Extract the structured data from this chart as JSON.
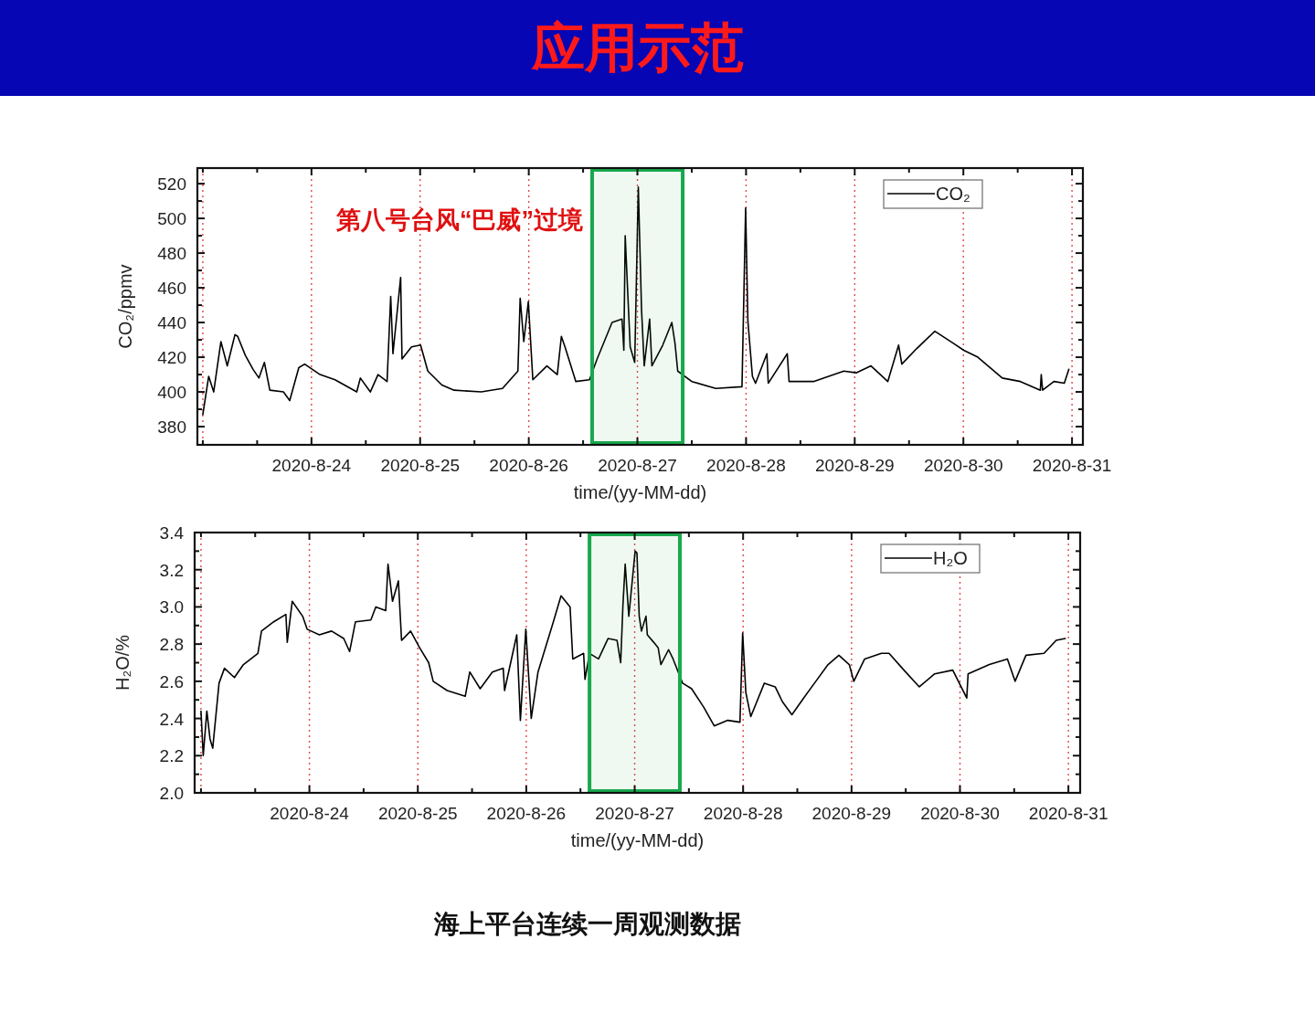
{
  "chart_data": [
    {
      "type": "line",
      "title": "应用示范",
      "xlabel": "time/(yy-MM-dd)",
      "ylabel": "CO₂/ppmv",
      "legend": "top right",
      "xlim": [
        "2020-08-22T22:48",
        "2020-08-31T02:24"
      ],
      "ylim": [
        369.5,
        529
      ],
      "xticks": [
        {
          "value": "2020-08-23",
          "label": null
        },
        {
          "value": "2020-08-23T12:00",
          "label": null
        },
        {
          "value": "2020-08-24",
          "label": "2020-8-24"
        },
        {
          "value": "2020-08-24T12:00",
          "label": null
        },
        {
          "value": "2020-08-25",
          "label": "2020-8-25"
        },
        {
          "value": "2020-08-25T12:00",
          "label": null
        },
        {
          "value": "2020-08-26",
          "label": "2020-8-26"
        },
        {
          "value": "2020-08-26T12:00",
          "label": null
        },
        {
          "value": "2020-08-27",
          "label": "2020-8-27"
        },
        {
          "value": "2020-08-27T12:00",
          "label": null
        },
        {
          "value": "2020-08-28",
          "label": "2020-8-28"
        },
        {
          "value": "2020-08-28T12:00",
          "label": null
        },
        {
          "value": "2020-08-29",
          "label": "2020-8-29"
        },
        {
          "value": "2020-08-29T12:00",
          "label": null
        },
        {
          "value": "2020-08-30",
          "label": "2020-8-30"
        },
        {
          "value": "2020-08-30T12:00",
          "label": null
        },
        {
          "value": "2020-08-31",
          "label": "2020-8-31"
        }
      ],
      "yticks": [
        380,
        {
          "value": 390,
          "label": null
        },
        400,
        {
          "value": 410,
          "label": null
        },
        420,
        {
          "value": 430,
          "label": null
        },
        440,
        {
          "value": 450,
          "label": null
        },
        460,
        {
          "value": 470,
          "label": null
        },
        480,
        {
          "value": 490,
          "label": null
        },
        500,
        {
          "value": 510,
          "label": null
        },
        520
      ],
      "ref_lines": [
        {
          "axis": "x",
          "value": "2020-08-23",
          "color": "#e04848",
          "line_style": "dotted"
        },
        {
          "axis": "x",
          "value": "2020-08-24",
          "color": "#e04848",
          "line_style": "dotted"
        },
        {
          "axis": "x",
          "value": "2020-08-25",
          "color": "#e04848",
          "line_style": "dotted"
        },
        {
          "axis": "x",
          "value": "2020-08-26",
          "color": "#e04848",
          "line_style": "dotted"
        },
        {
          "axis": "x",
          "value": "2020-08-27",
          "color": "#e04848",
          "line_style": "dotted"
        },
        {
          "axis": "x",
          "value": "2020-08-28",
          "color": "#e04848",
          "line_style": "dotted"
        },
        {
          "axis": "x",
          "value": "2020-08-29",
          "color": "#e04848",
          "line_style": "dotted"
        },
        {
          "axis": "x",
          "value": "2020-08-30",
          "color": "#e04848",
          "line_style": "dotted"
        },
        {
          "axis": "x",
          "value": "2020-08-31",
          "color": "#e04848",
          "line_style": "dotted"
        }
      ],
      "bands": [
        {
          "axis": "x",
          "from": "2020-08-26T14:00",
          "to": "2020-08-27T10:00",
          "label": "第八号台风“巴威”过境",
          "color": "#18a84c"
        }
      ],
      "series": [
        {
          "name": "CO₂",
          "color": "#000000",
          "x": [
            "2020-08-23T00:00",
            "2020-08-23T01:18",
            "2020-08-23T02:24",
            "2020-08-23T04:00",
            "2020-08-23T05:24",
            "2020-08-23T07:06",
            "2020-08-23T07:42",
            "2020-08-23T09:24",
            "2020-08-23T11:06",
            "2020-08-23T12:24",
            "2020-08-23T13:36",
            "2020-08-23T14:48",
            "2020-08-23T17:48",
            "2020-08-23T19:12",
            "2020-08-23T21:12",
            "2020-08-23T22:30",
            "2020-08-24T01:54",
            "2020-08-24T05:12",
            "2020-08-24T10:00",
            "2020-08-24T10:48",
            "2020-08-24T13:00",
            "2020-08-24T14:42",
            "2020-08-24T16:42",
            "2020-08-24T17:30",
            "2020-08-24T18:00",
            "2020-08-24T19:42",
            "2020-08-24T20:00",
            "2020-08-24T22:06",
            "2020-08-25T00:06",
            "2020-08-25T01:42",
            "2020-08-25T04:48",
            "2020-08-25T07:30",
            "2020-08-25T13:30",
            "2020-08-25T18:12",
            "2020-08-25T21:36",
            "2020-08-25T22:06",
            "2020-08-25T22:54",
            "2020-08-25T23:54",
            "2020-08-26T00:54",
            "2020-08-26T04:00",
            "2020-08-26T06:18",
            "2020-08-26T07:12",
            "2020-08-26T08:00",
            "2020-08-26T10:24",
            "2020-08-26T13:24",
            "2020-08-26T15:06",
            "2020-08-26T18:24",
            "2020-08-26T20:36",
            "2020-08-26T21:00",
            "2020-08-26T21:18",
            "2020-08-26T22:24",
            "2020-08-26T23:24",
            "2020-08-27T00:12",
            "2020-08-27T00:54",
            "2020-08-27T01:30",
            "2020-08-27T02:42",
            "2020-08-27T03:12",
            "2020-08-27T05:36",
            "2020-08-27T07:36",
            "2020-08-27T08:18",
            "2020-08-27T08:54",
            "2020-08-27T12:00",
            "2020-08-27T17:18",
            "2020-08-27T23:06",
            "2020-08-27T23:54",
            "2020-08-28T00:24",
            "2020-08-28T01:24",
            "2020-08-28T02:06",
            "2020-08-28T04:36",
            "2020-08-28T04:54",
            "2020-08-28T09:06",
            "2020-08-28T09:30",
            "2020-08-28T14:54",
            "2020-08-28T21:36",
            "2020-08-29T00:18",
            "2020-08-29T03:36",
            "2020-08-29T07:18",
            "2020-08-29T09:42",
            "2020-08-29T10:24",
            "2020-08-29T13:42",
            "2020-08-29T17:42",
            "2020-08-29T21:48",
            "2020-08-30T00:06",
            "2020-08-30T03:12",
            "2020-08-30T08:36",
            "2020-08-30T12:36",
            "2020-08-30T17:00",
            "2020-08-30T17:12",
            "2020-08-30T17:30",
            "2020-08-30T20:00",
            "2020-08-30T22:18",
            "2020-08-30T23:18"
          ],
          "values": [
            387,
            409,
            400,
            429,
            415,
            433,
            432,
            421,
            413,
            408,
            417,
            401,
            400,
            395,
            414,
            416,
            410,
            407,
            400,
            408,
            400,
            410,
            406,
            455,
            422,
            466,
            419,
            426,
            427,
            412,
            404,
            401,
            400,
            402,
            412,
            454,
            429,
            452,
            407,
            415,
            410,
            432,
            426,
            406,
            407,
            419,
            440,
            442,
            424,
            490,
            426,
            417,
            518,
            448,
            415,
            442,
            415,
            427,
            440,
            428,
            412,
            406,
            402,
            403,
            506,
            441,
            409,
            405,
            422,
            405,
            422,
            406,
            406,
            412,
            411,
            415,
            406,
            427,
            416,
            425,
            435,
            428,
            424,
            420,
            408,
            406,
            401,
            410,
            401,
            406,
            405,
            413
          ]
        }
      ]
    },
    {
      "type": "line",
      "xlabel": "time/(yy-MM-dd)",
      "ylabel": "H₂O/%",
      "legend": "top right",
      "annotations": [
        "海上平台连续一周观测数据"
      ],
      "xlim": [
        "2020-08-22T22:36",
        "2020-08-31T02:36"
      ],
      "ylim": [
        2.0,
        3.4
      ],
      "xticks": [
        {
          "value": "2020-08-23",
          "label": null
        },
        {
          "value": "2020-08-23T12:00",
          "label": null
        },
        {
          "value": "2020-08-24",
          "label": "2020-8-24"
        },
        {
          "value": "2020-08-24T12:00",
          "label": null
        },
        {
          "value": "2020-08-25",
          "label": "2020-8-25"
        },
        {
          "value": "2020-08-25T12:00",
          "label": null
        },
        {
          "value": "2020-08-26",
          "label": "2020-8-26"
        },
        {
          "value": "2020-08-26T12:00",
          "label": null
        },
        {
          "value": "2020-08-27",
          "label": "2020-8-27"
        },
        {
          "value": "2020-08-27T12:00",
          "label": null
        },
        {
          "value": "2020-08-28",
          "label": "2020-8-28"
        },
        {
          "value": "2020-08-28T12:00",
          "label": null
        },
        {
          "value": "2020-08-29",
          "label": "2020-8-29"
        },
        {
          "value": "2020-08-29T12:00",
          "label": null
        },
        {
          "value": "2020-08-30",
          "label": "2020-8-30"
        },
        {
          "value": "2020-08-30T12:00",
          "label": null
        },
        {
          "value": "2020-08-31",
          "label": "2020-8-31"
        }
      ],
      "yticks": [
        {
          "value": 2.0,
          "label": "2.0"
        },
        {
          "value": 2.1,
          "label": null
        },
        {
          "value": 2.2,
          "label": "2.2"
        },
        {
          "value": 2.3,
          "label": null
        },
        {
          "value": 2.4,
          "label": "2.4"
        },
        {
          "value": 2.5,
          "label": null
        },
        {
          "value": 2.6,
          "label": "2.6"
        },
        {
          "value": 2.7,
          "label": null
        },
        {
          "value": 2.8,
          "label": "2.8"
        },
        {
          "value": 2.9,
          "label": null
        },
        {
          "value": 3.0,
          "label": "3.0"
        },
        {
          "value": 3.1,
          "label": null
        },
        {
          "value": 3.2,
          "label": "3.2"
        },
        {
          "value": 3.3,
          "label": null
        },
        {
          "value": 3.4,
          "label": "3.4"
        }
      ],
      "ref_lines": [
        {
          "axis": "x",
          "value": "2020-08-23",
          "color": "#e04848",
          "line_style": "dotted"
        },
        {
          "axis": "x",
          "value": "2020-08-24",
          "color": "#e04848",
          "line_style": "dotted"
        },
        {
          "axis": "x",
          "value": "2020-08-25",
          "color": "#e04848",
          "line_style": "dotted"
        },
        {
          "axis": "x",
          "value": "2020-08-26",
          "color": "#e04848",
          "line_style": "dotted"
        },
        {
          "axis": "x",
          "value": "2020-08-27",
          "color": "#e04848",
          "line_style": "dotted"
        },
        {
          "axis": "x",
          "value": "2020-08-28",
          "color": "#e04848",
          "line_style": "dotted"
        },
        {
          "axis": "x",
          "value": "2020-08-29",
          "color": "#e04848",
          "line_style": "dotted"
        },
        {
          "axis": "x",
          "value": "2020-08-30",
          "color": "#e04848",
          "line_style": "dotted"
        },
        {
          "axis": "x",
          "value": "2020-08-31",
          "color": "#e04848",
          "line_style": "dotted"
        }
      ],
      "bands": [
        {
          "axis": "x",
          "from": "2020-08-26T14:00",
          "to": "2020-08-27T10:00",
          "color": "#18a84c"
        }
      ],
      "series": [
        {
          "name": "H₂O",
          "color": "#000000",
          "x": [
            "2020-08-23T00:00",
            "2020-08-23T00:30",
            "2020-08-23T01:18",
            "2020-08-23T02:00",
            "2020-08-23T02:36",
            "2020-08-23T04:00",
            "2020-08-23T05:12",
            "2020-08-23T07:24",
            "2020-08-23T09:24",
            "2020-08-23T12:36",
            "2020-08-23T13:24",
            "2020-08-23T16:06",
            "2020-08-23T18:48",
            "2020-08-23T19:06",
            "2020-08-23T20:12",
            "2020-08-23T22:30",
            "2020-08-23T23:30",
            "2020-08-24T02:12",
            "2020-08-24T04:54",
            "2020-08-24T07:36",
            "2020-08-24T08:54",
            "2020-08-24T10:12",
            "2020-08-24T13:36",
            "2020-08-24T14:42",
            "2020-08-24T16:54",
            "2020-08-24T17:24",
            "2020-08-24T18:24",
            "2020-08-24T19:42",
            "2020-08-24T20:24",
            "2020-08-24T22:24",
            "2020-08-25T00:24",
            "2020-08-25T02:24",
            "2020-08-25T03:24",
            "2020-08-25T06:30",
            "2020-08-25T10:30",
            "2020-08-25T11:30",
            "2020-08-25T13:48",
            "2020-08-25T16:30",
            "2020-08-25T18:54",
            "2020-08-25T19:12",
            "2020-08-25T21:54",
            "2020-08-25T22:42",
            "2020-08-25T23:54",
            "2020-08-26T01:06",
            "2020-08-26T02:36",
            "2020-08-26T06:00",
            "2020-08-26T07:42",
            "2020-08-26T09:42",
            "2020-08-26T10:18",
            "2020-08-26T12:42",
            "2020-08-26T13:00",
            "2020-08-26T14:00",
            "2020-08-26T16:00",
            "2020-08-26T18:06",
            "2020-08-26T20:06",
            "2020-08-26T20:54",
            "2020-08-26T21:24",
            "2020-08-26T21:54",
            "2020-08-26T22:42",
            "2020-08-27T00:06",
            "2020-08-27T00:30",
            "2020-08-27T01:00",
            "2020-08-27T01:30",
            "2020-08-27T02:30",
            "2020-08-27T02:48",
            "2020-08-27T04:12",
            "2020-08-27T05:12",
            "2020-08-27T05:48",
            "2020-08-27T07:30",
            "2020-08-27T08:30",
            "2020-08-27T10:36",
            "2020-08-27T12:36",
            "2020-08-27T15:18",
            "2020-08-27T17:36",
            "2020-08-27T20:36",
            "2020-08-27T23:18",
            "2020-08-27T23:54",
            "2020-08-28T00:36",
            "2020-08-28T01:42",
            "2020-08-28T04:42",
            "2020-08-28T07:06",
            "2020-08-28T08:42",
            "2020-08-28T10:48",
            "2020-08-28T13:24",
            "2020-08-28T16:06",
            "2020-08-28T18:48",
            "2020-08-28T21:12",
            "2020-08-28T23:30",
            "2020-08-29T00:30",
            "2020-08-29T02:54",
            "2020-08-29T06:36",
            "2020-08-29T08:18",
            "2020-08-29T11:36",
            "2020-08-29T15:00",
            "2020-08-29T18:24",
            "2020-08-29T22:24",
            "2020-08-30T01:30",
            "2020-08-30T01:48",
            "2020-08-30T06:30",
            "2020-08-30T10:30",
            "2020-08-30T12:12",
            "2020-08-30T14:36",
            "2020-08-30T18:36",
            "2020-08-30T21:18",
            "2020-08-30T23:18"
          ],
          "values": [
            2.44,
            2.2,
            2.44,
            2.29,
            2.24,
            2.59,
            2.67,
            2.62,
            2.69,
            2.75,
            2.87,
            2.92,
            2.96,
            2.81,
            3.03,
            2.95,
            2.88,
            2.85,
            2.87,
            2.83,
            2.76,
            2.92,
            2.93,
            3.0,
            2.98,
            3.23,
            3.03,
            3.14,
            2.82,
            2.87,
            2.78,
            2.7,
            2.6,
            2.55,
            2.52,
            2.65,
            2.56,
            2.65,
            2.67,
            2.55,
            2.85,
            2.39,
            2.88,
            2.4,
            2.65,
            2.92,
            3.06,
            3.0,
            2.72,
            2.75,
            2.61,
            2.75,
            2.72,
            2.83,
            2.82,
            2.7,
            3.01,
            3.23,
            2.95,
            3.3,
            3.29,
            2.95,
            2.87,
            2.95,
            2.85,
            2.81,
            2.78,
            2.69,
            2.77,
            2.72,
            2.59,
            2.56,
            2.46,
            2.36,
            2.39,
            2.38,
            2.86,
            2.54,
            2.41,
            2.59,
            2.57,
            2.49,
            2.42,
            2.51,
            2.6,
            2.69,
            2.74,
            2.69,
            2.6,
            2.72,
            2.75,
            2.75,
            2.66,
            2.57,
            2.64,
            2.66,
            2.51,
            2.64,
            2.69,
            2.72,
            2.6,
            2.74,
            2.75,
            2.82,
            2.83
          ]
        }
      ]
    }
  ]
}
